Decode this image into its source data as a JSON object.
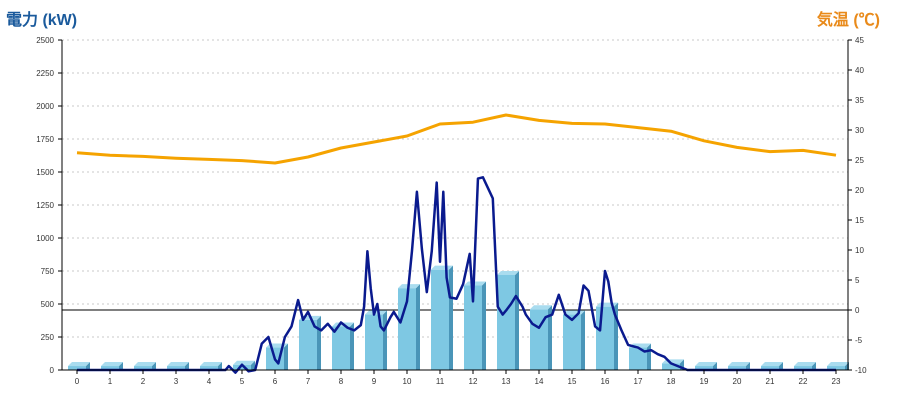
{
  "chart_data": {
    "type": "bar+line",
    "left_axis": {
      "label": "電力 (kW)",
      "ylim": [
        0,
        2500
      ],
      "ticks": [
        0,
        250,
        500,
        750,
        1000,
        1250,
        1500,
        1750,
        2000,
        2250,
        2500
      ]
    },
    "right_axis": {
      "label": "気温 (℃)",
      "ylim": [
        -10,
        45
      ],
      "ticks": [
        -10,
        -5,
        0,
        5,
        10,
        15,
        20,
        25,
        30,
        35,
        40,
        45
      ]
    },
    "x_ticks": [
      "0",
      "1",
      "2",
      "3",
      "4",
      "5",
      "6",
      "7",
      "8",
      "9",
      "10",
      "11",
      "12",
      "13",
      "14",
      "15",
      "16",
      "17",
      "18",
      "19",
      "20",
      "21",
      "22",
      "23"
    ],
    "grid": true,
    "colors": {
      "left_title": "#1a5a9c",
      "right_title": "#e98a1a",
      "bar": "#7ec8e3",
      "bar_side": "#4a95b8",
      "bar_top": "#a9dcef",
      "power_line": "#0a1a8e",
      "temp_line": "#f5a300",
      "grid": "#c9c9c9",
      "zero_line": "#000000"
    },
    "bars": {
      "name": "電力",
      "values": [
        30,
        30,
        30,
        30,
        30,
        40,
        170,
        380,
        330,
        420,
        620,
        760,
        640,
        720,
        460,
        420,
        480,
        170,
        50,
        30,
        30,
        30,
        30,
        30
      ]
    },
    "power_line": {
      "name": "電力",
      "x": [
        0,
        0.5,
        1,
        1.5,
        2,
        2.5,
        3,
        3.5,
        4,
        4.5,
        4.6,
        4.8,
        5,
        5.2,
        5.4,
        5.6,
        5.8,
        6,
        6.1,
        6.3,
        6.5,
        6.7,
        6.85,
        7,
        7.2,
        7.4,
        7.6,
        7.8,
        8,
        8.2,
        8.4,
        8.6,
        8.7,
        8.8,
        8.9,
        9,
        9.1,
        9.2,
        9.3,
        9.5,
        9.6,
        9.8,
        10,
        10.15,
        10.3,
        10.45,
        10.6,
        10.75,
        10.9,
        11,
        11.1,
        11.2,
        11.3,
        11.5,
        11.7,
        11.9,
        12,
        12.15,
        12.3,
        12.45,
        12.6,
        12.75,
        12.9,
        13,
        13.15,
        13.3,
        13.5,
        13.6,
        13.8,
        14,
        14.2,
        14.4,
        14.6,
        14.8,
        15,
        15.2,
        15.35,
        15.5,
        15.7,
        15.85,
        16,
        16.1,
        16.2,
        16.3,
        16.5,
        16.7,
        17,
        17.2,
        17.4,
        17.6,
        17.8,
        18,
        18.5,
        19,
        20,
        21,
        22,
        23
      ],
      "values": [
        0,
        0,
        0,
        0,
        0,
        0,
        0,
        0,
        0,
        0,
        30,
        -20,
        40,
        -10,
        0,
        200,
        250,
        80,
        50,
        250,
        330,
        530,
        380,
        440,
        330,
        300,
        350,
        290,
        360,
        320,
        300,
        340,
        480,
        900,
        620,
        420,
        500,
        330,
        300,
        400,
        440,
        360,
        520,
        900,
        1350,
        920,
        590,
        900,
        1420,
        820,
        1350,
        700,
        550,
        540,
        650,
        880,
        520,
        1450,
        1460,
        1380,
        1300,
        480,
        420,
        450,
        500,
        560,
        480,
        420,
        350,
        320,
        400,
        420,
        570,
        420,
        380,
        430,
        640,
        600,
        330,
        300,
        750,
        670,
        510,
        420,
        300,
        190,
        170,
        140,
        150,
        120,
        100,
        50,
        0,
        0,
        0,
        0,
        0,
        0
      ]
    },
    "temp_line": {
      "name": "気温",
      "x": [
        0,
        1,
        2,
        3,
        4,
        5,
        6,
        7,
        8,
        9,
        10,
        11,
        12,
        13,
        14,
        15,
        16,
        17,
        18,
        19,
        20,
        21,
        22,
        23
      ],
      "values": [
        26.2,
        25.8,
        25.6,
        25.3,
        25.1,
        24.9,
        24.5,
        25.5,
        27.0,
        28.0,
        29.0,
        31.0,
        31.3,
        32.5,
        31.6,
        31.1,
        31.0,
        30.4,
        29.8,
        28.2,
        27.1,
        26.4,
        26.6,
        25.8
      ]
    }
  }
}
